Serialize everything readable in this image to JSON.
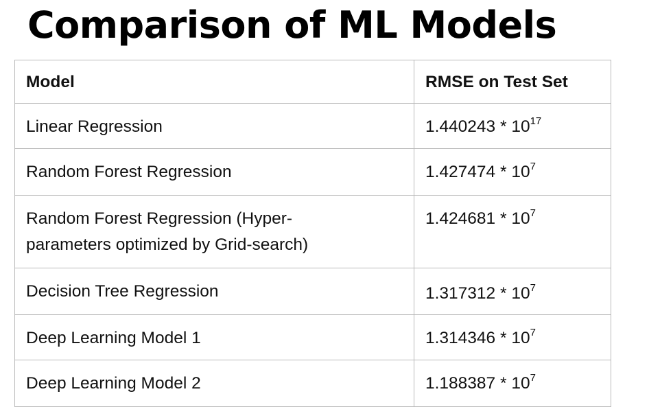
{
  "title": "Comparison of ML Models",
  "table": {
    "headers": [
      "Model",
      "RMSE on Test Set"
    ],
    "rows": [
      {
        "model": "Linear Regression",
        "mantissa": "1.440243 * 10",
        "exponent": "17"
      },
      {
        "model": "Random Forest Regression",
        "mantissa": "1.427474 * 10",
        "exponent": "7"
      },
      {
        "model": "Random Forest Regression (Hyper-parameters optimized by Grid-search)",
        "mantissa": "1.424681 * 10",
        "exponent": "7"
      },
      {
        "model": "Decision Tree Regression",
        "mantissa": "1.317312 * 10",
        "exponent": "7"
      },
      {
        "model": "Deep Learning Model 1",
        "mantissa": "1.314346 * 10",
        "exponent": "7"
      },
      {
        "model": "Deep Learning Model 2",
        "mantissa": "1.188387 * 10",
        "exponent": "7"
      }
    ]
  }
}
